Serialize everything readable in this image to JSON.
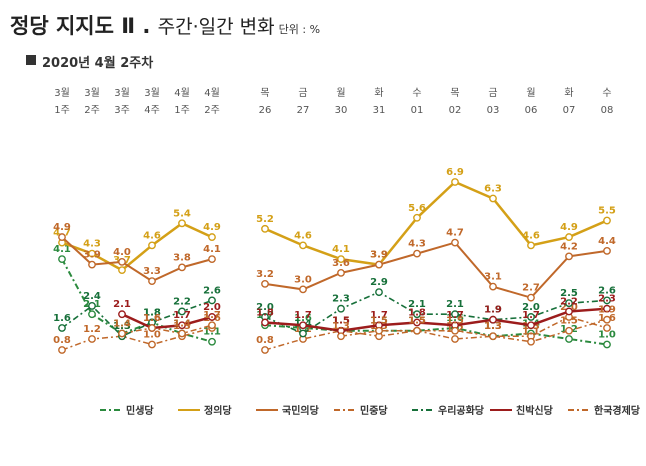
{
  "title": "정당 지지도 Ⅱ .",
  "title_sub": "주간·일간 변화",
  "unit": "단위 : %",
  "subtitle": "2020년 4월 2주차",
  "colors": {
    "minsaeng": "#2b8a3e",
    "jeongui": "#d4a017",
    "gukmin": "#c0682a",
    "minjung": "#c0682a",
    "uri": "#17703a",
    "chinbak": "#9c1c1c",
    "hanguk": "#c0682a"
  },
  "chart_data": [
    {
      "type": "line",
      "x_top": [
        "3월",
        "3월",
        "3월",
        "3월",
        "4월",
        "4월"
      ],
      "x_bottom": [
        "1주",
        "2주",
        "3주",
        "4주",
        "1주",
        "2주"
      ],
      "series": [
        {
          "name": "민생당",
          "values": [
            4.1,
            2.1,
            1.4,
            1.8,
            1.4,
            1.1
          ]
        },
        {
          "name": "정의당",
          "values": [
            4.7,
            4.3,
            3.7,
            4.6,
            5.4,
            4.9
          ]
        },
        {
          "name": "국민의당",
          "values": [
            4.9,
            3.9,
            4.0,
            3.3,
            3.8,
            4.1
          ]
        },
        {
          "name": "민중당",
          "values": [
            0.8,
            1.2,
            1.3,
            1.0,
            1.3,
            1.6
          ]
        },
        {
          "name": "우리공화당",
          "values": [
            1.6,
            2.4,
            1.3,
            1.8,
            2.2,
            2.6
          ]
        },
        {
          "name": "친박신당",
          "values": [
            null,
            null,
            2.1,
            1.6,
            1.7,
            2.0
          ]
        },
        {
          "name": "한국경제당",
          "values": [
            null,
            null,
            1.4,
            1.6,
            1.4,
            1.7
          ]
        }
      ]
    },
    {
      "type": "line",
      "x_top": [
        "목",
        "금",
        "월",
        "화",
        "수",
        "목",
        "금",
        "월",
        "화",
        "수"
      ],
      "x_bottom": [
        "26",
        "27",
        "30",
        "31",
        "01",
        "02",
        "03",
        "06",
        "07",
        "08"
      ],
      "series": [
        {
          "name": "민생당",
          "values": [
            1.7,
            1.6,
            1.5,
            1.5,
            1.5,
            1.6,
            1.3,
            1.4,
            1.2,
            1.0
          ]
        },
        {
          "name": "정의당",
          "values": [
            5.2,
            4.6,
            4.1,
            3.9,
            5.6,
            6.9,
            6.3,
            4.6,
            4.9,
            5.5
          ]
        },
        {
          "name": "국민의당",
          "values": [
            3.2,
            3.0,
            3.6,
            3.9,
            4.3,
            4.7,
            3.1,
            2.7,
            4.2,
            4.4
          ]
        },
        {
          "name": "민중당",
          "values": [
            0.8,
            1.2,
            1.5,
            1.3,
            1.5,
            1.2,
            1.3,
            1.3,
            2.0,
            1.6
          ]
        },
        {
          "name": "우리공화당",
          "values": [
            2.0,
            1.4,
            2.3,
            2.9,
            2.1,
            2.1,
            1.9,
            2.0,
            2.5,
            2.6
          ]
        },
        {
          "name": "친박신당",
          "values": [
            1.8,
            1.7,
            1.5,
            1.7,
            1.8,
            1.7,
            1.9,
            1.7,
            2.2,
            2.3
          ]
        },
        {
          "name": "한국경제당",
          "values": [
            null,
            null,
            1.3,
            1.5,
            1.5,
            1.5,
            1.3,
            1.1,
            1.5,
            1.9
          ]
        }
      ]
    }
  ],
  "legend": [
    {
      "key": "minsaeng",
      "label": "민생당",
      "style": "dash-dot"
    },
    {
      "key": "jeongui",
      "label": "정의당",
      "style": "solid"
    },
    {
      "key": "gukmin",
      "label": "국민의당",
      "style": "double"
    },
    {
      "key": "minjung",
      "label": "민중당",
      "style": "dash-dot"
    },
    {
      "key": "uri",
      "label": "우리공화당",
      "style": "dash-dot"
    },
    {
      "key": "chinbak",
      "label": "친박신당",
      "style": "dash-dot"
    },
    {
      "key": "hanguk",
      "label": "한국경제당",
      "style": "dash-dot"
    }
  ]
}
